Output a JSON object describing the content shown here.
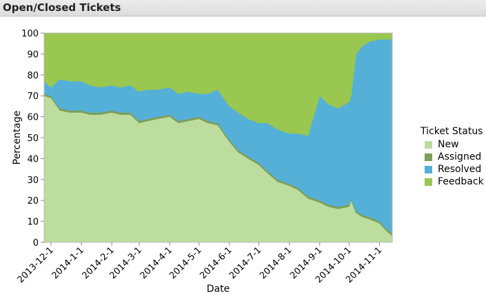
{
  "panel": {
    "title": "Open/Closed Tickets"
  },
  "chart_data": {
    "type": "area",
    "stacked": true,
    "xlabel": "Date",
    "ylabel": "Percentage",
    "ylim": [
      0,
      100
    ],
    "yticks": [
      0,
      10,
      20,
      30,
      40,
      50,
      60,
      70,
      80,
      90,
      100
    ],
    "xlim": [
      "2013-11-24",
      "2014-11-14"
    ],
    "xticks": [
      "2013-12-1",
      "2014-1-1",
      "2014-2-1",
      "2014-3-1",
      "2014-4-1",
      "2014-5-1",
      "2014-6-1",
      "2014-7-1",
      "2014-8-1",
      "2014-9-1",
      "2014-10-1",
      "2014-11-1"
    ],
    "grid": false,
    "x": [
      "2013-11-24",
      "2013-12-01",
      "2013-12-10",
      "2013-12-20",
      "2014-01-01",
      "2014-01-10",
      "2014-01-20",
      "2014-02-01",
      "2014-02-10",
      "2014-02-20",
      "2014-03-01",
      "2014-03-10",
      "2014-03-20",
      "2014-04-01",
      "2014-04-10",
      "2014-04-20",
      "2014-05-01",
      "2014-05-10",
      "2014-05-20",
      "2014-06-01",
      "2014-06-10",
      "2014-06-20",
      "2014-07-01",
      "2014-07-10",
      "2014-07-20",
      "2014-08-01",
      "2014-08-10",
      "2014-08-20",
      "2014-09-01",
      "2014-09-10",
      "2014-09-20",
      "2014-10-01",
      "2014-10-03",
      "2014-10-08",
      "2014-10-15",
      "2014-10-22",
      "2014-11-01",
      "2014-11-07",
      "2014-11-14"
    ],
    "series": [
      {
        "name": "New",
        "color": "#bcdd9e",
        "values": [
          70,
          69,
          63,
          62,
          62,
          61,
          61,
          62,
          61,
          61,
          57,
          58,
          59,
          60,
          57,
          58,
          59,
          57,
          56,
          48,
          43,
          40,
          37,
          33,
          29,
          27,
          25,
          21,
          19,
          17,
          16,
          17,
          20,
          14,
          12,
          11,
          9,
          6,
          3
        ]
      },
      {
        "name": "Assigned",
        "color": "#7f9e58",
        "values": [
          1,
          1,
          1,
          1,
          1,
          1,
          1,
          1,
          1,
          1,
          1,
          1,
          1,
          1,
          1,
          1,
          1,
          1,
          1,
          1,
          1,
          1,
          1,
          1,
          1,
          1,
          1,
          1,
          1,
          1,
          1,
          1,
          1,
          1,
          1,
          1,
          1,
          1,
          1
        ]
      },
      {
        "name": "Resolved",
        "color": "#55b0d8",
        "values": [
          6,
          4,
          14,
          14,
          14,
          13,
          12,
          12,
          12,
          13,
          14,
          14,
          13,
          13,
          13,
          13,
          11,
          13,
          16,
          16,
          18,
          18,
          19,
          23,
          24,
          24,
          26,
          29,
          50,
          48,
          47,
          49,
          49,
          75,
          81,
          84,
          87,
          90,
          93
        ]
      },
      {
        "name": "Feedback",
        "color": "#99c74f",
        "values": [
          23,
          26,
          22,
          23,
          23,
          25,
          26,
          25,
          26,
          25,
          28,
          27,
          27,
          26,
          29,
          28,
          29,
          29,
          27,
          35,
          38,
          41,
          43,
          43,
          46,
          48,
          48,
          49,
          30,
          34,
          36,
          33,
          30,
          10,
          6,
          4,
          3,
          3,
          3
        ]
      }
    ]
  },
  "legend": {
    "title": "Ticket Status",
    "items": [
      {
        "label": "New",
        "color": "#bcdd9e"
      },
      {
        "label": "Assigned",
        "color": "#7f9e58"
      },
      {
        "label": "Resolved",
        "color": "#55b0d8"
      },
      {
        "label": "Feedback",
        "color": "#99c74f"
      }
    ]
  }
}
